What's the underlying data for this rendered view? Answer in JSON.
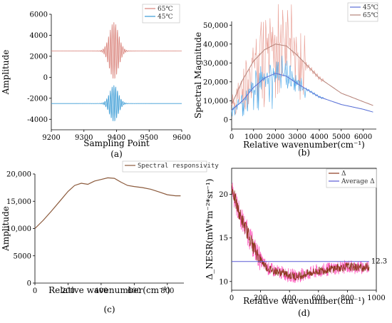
{
  "chart_data": [
    {
      "type": "line",
      "caption": "(a)",
      "xlabel": "Sampling Point",
      "ylabel": "Amplitude",
      "xlim": [
        9200,
        9600
      ],
      "ylim": [
        -5000,
        6000
      ],
      "xticks": [
        9200,
        9300,
        9400,
        9500,
        9600
      ],
      "yticks": [
        -4000,
        -2000,
        0,
        2000,
        4000,
        6000
      ],
      "legend_position": "top-right",
      "series": [
        {
          "name": "65℃",
          "color": "#d9827a",
          "baseline": 2500,
          "peak": 2700,
          "center": 9392,
          "decay": 14,
          "period": 5.5,
          "x": [
            9200,
            9600
          ]
        },
        {
          "name": "45℃",
          "color": "#3a9bd5",
          "baseline": -2500,
          "peak": 1700,
          "center": 9392,
          "decay": 13,
          "period": 5.5,
          "x": [
            9200,
            9600
          ]
        }
      ]
    },
    {
      "type": "line",
      "caption": "(b)",
      "xlabel": "Relative wavenumber(cm⁻¹)",
      "ylabel": "Spectral Magnitude",
      "xlim": [
        0,
        6600
      ],
      "ylim": [
        -5000,
        52000
      ],
      "xticks": [
        0,
        1000,
        2000,
        3000,
        4000,
        5000,
        6000
      ],
      "yticks": [
        0,
        10000,
        20000,
        30000,
        40000,
        50000
      ],
      "ytick_labels": [
        "0",
        "10,000",
        "20,000",
        "30,000",
        "40,000",
        "50,000"
      ],
      "legend_position": "top-right",
      "series": [
        {
          "name": "45℃",
          "color": "#5b6fd6",
          "envelope_x": [
            0,
            500,
            1000,
            1500,
            2000,
            2500,
            3000,
            3500,
            4000,
            5000,
            6000,
            6450
          ],
          "envelope_y": [
            5000,
            10000,
            17000,
            22000,
            24500,
            23000,
            19000,
            15500,
            12000,
            8000,
            5500,
            4000
          ]
        },
        {
          "name": "65℃",
          "color": "#b5847a",
          "envelope_x": [
            0,
            500,
            1000,
            1500,
            2000,
            2500,
            3000,
            3500,
            4000,
            5000,
            6000,
            6450
          ],
          "envelope_y": [
            8000,
            21000,
            31000,
            37000,
            40000,
            39000,
            34000,
            28000,
            22000,
            14000,
            9500,
            7500
          ]
        }
      ]
    },
    {
      "type": "line",
      "caption": "(c)",
      "xlabel": "Relative wavenumber(cm⁻¹)",
      "ylabel": "Amplitude",
      "xlim": [
        0,
        900
      ],
      "ylim": [
        0,
        20000
      ],
      "xticks": [
        0,
        200,
        400,
        600,
        800
      ],
      "yticks": [
        0,
        5000,
        10000,
        15000,
        20000
      ],
      "ytick_labels": [
        "0",
        "5000",
        "10,000",
        "15,000",
        "20,000"
      ],
      "legend_position": "top-right",
      "series": [
        {
          "name": "Spectral responsivity",
          "color": "#8b5a3c",
          "x": [
            0,
            50,
            100,
            150,
            200,
            240,
            280,
            320,
            360,
            400,
            440,
            480,
            520,
            560,
            600,
            650,
            700,
            750,
            800,
            850,
            880
          ],
          "y": [
            10000,
            11500,
            13200,
            15000,
            16800,
            17900,
            18300,
            18100,
            18700,
            19000,
            19300,
            19200,
            18500,
            17900,
            17700,
            17500,
            17200,
            16700,
            16200,
            16000,
            16000
          ]
        }
      ]
    },
    {
      "type": "line",
      "caption": "(d)",
      "xlabel": "Relative wavenumber(cm⁻¹)",
      "ylabel": "Δ_NESR(mW*m⁻²*sr⁻¹)",
      "xlim": [
        0,
        1000
      ],
      "ylim": [
        9,
        23
      ],
      "xticks": [
        0,
        200,
        400,
        600,
        800,
        1000
      ],
      "yticks": [
        10,
        15,
        20
      ],
      "legend_position": "top-right",
      "annotation": "12.3",
      "series": [
        {
          "name": "Δ",
          "color": "#8b3a1e",
          "x": [
            0,
            30,
            60,
            100,
            150,
            200,
            250,
            300,
            350,
            400,
            450,
            500,
            600,
            700,
            800,
            900,
            950
          ],
          "y": [
            21,
            19,
            17.5,
            16,
            14,
            12.5,
            11.5,
            11.2,
            11,
            10.7,
            10.6,
            10.8,
            11.2,
            11.5,
            11.7,
            11.6,
            11.7
          ]
        },
        {
          "name": "Average Δ",
          "color": "#5a5ad6",
          "x": [
            0,
            950
          ],
          "y": [
            12.3,
            12.3
          ]
        }
      ]
    }
  ]
}
